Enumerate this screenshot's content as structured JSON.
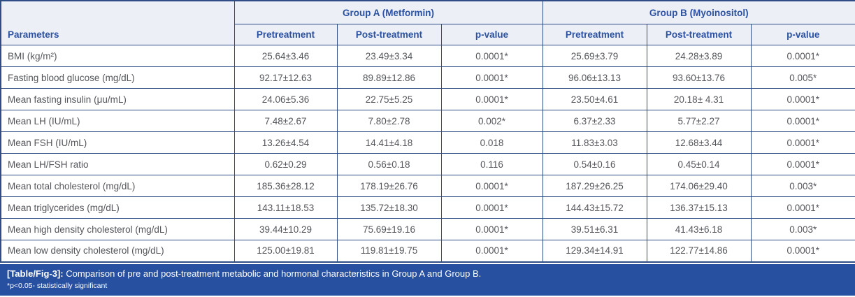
{
  "table": {
    "header": {
      "parameters_label": "Parameters",
      "groups": [
        {
          "label": "Group A (Metformin)",
          "subcolumns": [
            "Pretreatment",
            "Post-treatment",
            "p-value"
          ]
        },
        {
          "label": "Group B (Myoinositol)",
          "subcolumns": [
            "Pretreatment",
            "Post-treatment",
            "p-value"
          ]
        }
      ]
    },
    "rows": [
      {
        "parameter": "BMI (kg/m²)",
        "values": [
          "25.64±3.46",
          "23.49±3.34",
          "0.0001*",
          "25.69±3.79",
          "24.28±3.89",
          "0.0001*"
        ]
      },
      {
        "parameter": "Fasting blood glucose (mg/dL)",
        "values": [
          "92.17±12.63",
          "89.89±12.86",
          "0.0001*",
          "96.06±13.13",
          "93.60±13.76",
          "0.005*"
        ]
      },
      {
        "parameter": "Mean fasting insulin (μu/mL)",
        "values": [
          "24.06±5.36",
          "22.75±5.25",
          "0.0001*",
          "23.50±4.61",
          "20.18± 4.31",
          "0.0001*"
        ]
      },
      {
        "parameter": "Mean LH (IU/mL)",
        "values": [
          "7.48±2.67",
          "7.80±2.78",
          "0.002*",
          "6.37±2.33",
          "5.77±2.27",
          "0.0001*"
        ]
      },
      {
        "parameter": "Mean FSH (IU/mL)",
        "values": [
          "13.26±4.54",
          "14.41±4.18",
          "0.018",
          "11.83±3.03",
          "12.68±3.44",
          "0.0001*"
        ]
      },
      {
        "parameter": "Mean LH/FSH ratio",
        "values": [
          "0.62±0.29",
          "0.56±0.18",
          "0.116",
          "0.54±0.16",
          "0.45±0.14",
          "0.0001*"
        ]
      },
      {
        "parameter": "Mean total cholesterol (mg/dL)",
        "values": [
          "185.36±28.12",
          "178.19±26.76",
          "0.0001*",
          "187.29±26.25",
          "174.06±29.40",
          "0.003*"
        ]
      },
      {
        "parameter": "Mean triglycerides (mg/dL)",
        "values": [
          "143.11±18.53",
          "135.72±18.30",
          "0.0001*",
          "144.43±15.72",
          "136.37±15.13",
          "0.0001*"
        ]
      },
      {
        "parameter": "Mean high density cholesterol (mg/dL)",
        "values": [
          "39.44±10.29",
          "75.69±19.16",
          "0.0001*",
          "39.51±6.31",
          "41.43±6.18",
          "0.003*"
        ]
      },
      {
        "parameter": "Mean low density cholesterol (mg/dL)",
        "values": [
          "125.00±19.81",
          "119.81±19.75",
          "0.0001*",
          "129.34±14.91",
          "122.77±14.86",
          "0.0001*"
        ]
      }
    ]
  },
  "caption": {
    "label": "[Table/Fig-3]:",
    "text": "Comparison of pre and post-treatment metabolic and hormonal characteristics in Group A and Group B.",
    "footnote": "*p<0.05- statistically significant"
  },
  "colors": {
    "border": "#2e4d87",
    "header_background": "#edeff6",
    "header_text": "#2b52a2",
    "body_text": "#54565b",
    "caption_background": "#2750a0",
    "caption_text": "#ffffff"
  }
}
